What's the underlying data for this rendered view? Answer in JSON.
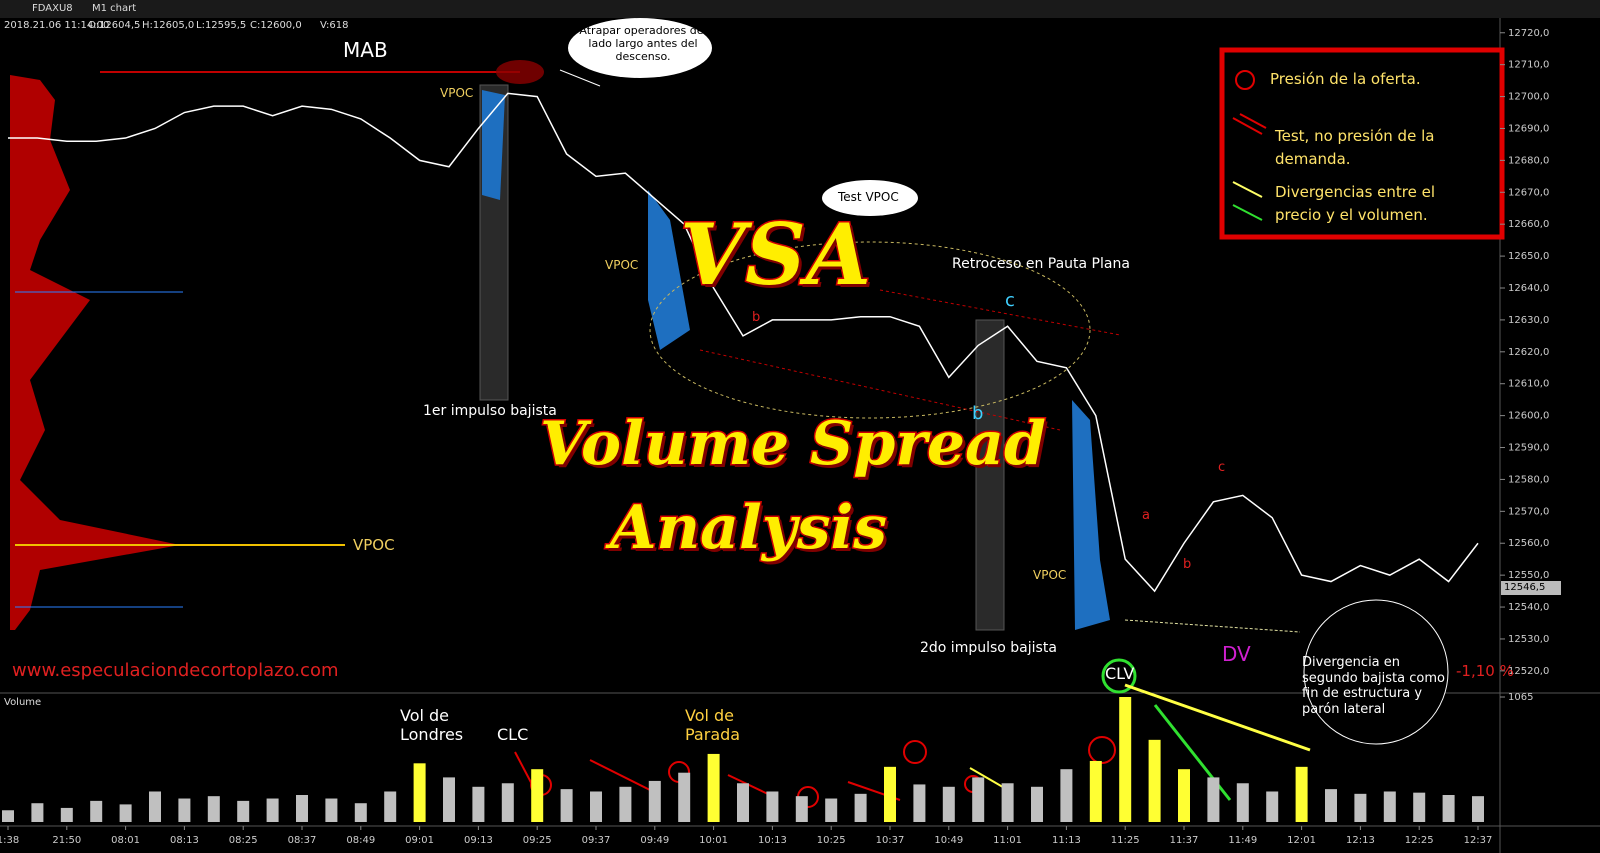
{
  "header": {
    "symbol": "FDAXU8",
    "timeframe": "M1 chart",
    "datetime": "2018.21.06 11:14:00",
    "open": "O:12604,5",
    "high": "H:12605,0",
    "low": "L:12595,5",
    "close": "C:12600,0",
    "volume": "V:618",
    "last_price": "12546,5",
    "panel_label": "Volume"
  },
  "chart_data": [
    {
      "type": "line",
      "color": "#ffffff",
      "values": [
        12687,
        12687,
        12686,
        12686,
        12687,
        12690,
        12695,
        12697,
        12697,
        12694,
        12697,
        12696,
        12693,
        12687,
        12680,
        12678,
        12690,
        12701,
        12700,
        12682,
        12675,
        12676,
        12668,
        12660,
        12640,
        12625,
        12630,
        12630,
        12630,
        12631,
        12631,
        12628,
        12612,
        12622,
        12628,
        12617,
        12615,
        12600,
        12555,
        12545,
        12560,
        12573,
        12575,
        12568,
        12550,
        12548,
        12553,
        12550,
        12555,
        12548,
        12560
      ],
      "ylim": [
        12514,
        12724
      ],
      "yticks": [
        {
          "value": 12520,
          "label": "12520,0"
        },
        {
          "value": 12530,
          "label": "12530,0"
        },
        {
          "value": 12540,
          "label": "12540,0"
        },
        {
          "value": 12550,
          "label": "12550,0"
        },
        {
          "value": 12560,
          "label": "12560,0"
        },
        {
          "value": 12570,
          "label": "12570,0"
        },
        {
          "value": 12580,
          "label": "12580,0"
        },
        {
          "value": 12590,
          "label": "12590,0"
        },
        {
          "value": 12600,
          "label": "12600,0"
        },
        {
          "value": 12610,
          "label": "12610,0"
        },
        {
          "value": 12620,
          "label": "12620,0"
        },
        {
          "value": 12630,
          "label": "12630,0"
        },
        {
          "value": 12640,
          "label": "12640,0"
        },
        {
          "value": 12650,
          "label": "12650,0"
        },
        {
          "value": 12660,
          "label": "12660,0"
        },
        {
          "value": 12670,
          "label": "12670,0"
        },
        {
          "value": 12680,
          "label": "12680,0"
        },
        {
          "value": 12690,
          "label": "12690,0"
        },
        {
          "value": 12700,
          "label": "12700,0"
        },
        {
          "value": 12710,
          "label": "12710,0"
        },
        {
          "value": 12720,
          "label": "12720,0"
        }
      ]
    },
    {
      "type": "bar",
      "categories": [
        "1:38",
        null,
        "21:50",
        null,
        "08:01",
        null,
        "08:13",
        null,
        "08:25",
        null,
        "08:37",
        null,
        "08:49",
        null,
        "09:01",
        null,
        "09:13",
        null,
        "09:25",
        null,
        "09:37",
        null,
        "09:49",
        null,
        "10:01",
        null,
        "10:13",
        null,
        "10:25",
        null,
        "10:37",
        null,
        "10:49",
        null,
        "11:01",
        null,
        "11:13",
        null,
        "11:25",
        null,
        "11:37",
        null,
        "11:49",
        null,
        "12:01",
        null,
        "12:13",
        null,
        "12:25",
        null,
        "12:37"
      ],
      "values": [
        100,
        160,
        120,
        180,
        150,
        260,
        200,
        220,
        180,
        200,
        230,
        200,
        160,
        260,
        500,
        380,
        300,
        330,
        450,
        280,
        260,
        300,
        350,
        420,
        580,
        330,
        260,
        220,
        200,
        240,
        470,
        320,
        300,
        380,
        330,
        300,
        450,
        520,
        1065,
        700,
        450,
        380,
        330,
        260,
        470,
        280,
        240,
        260,
        250,
        230,
        220
      ],
      "colors": [
        "#c0c0c0",
        "#c0c0c0",
        "#c0c0c0",
        "#c0c0c0",
        "#c0c0c0",
        "#c0c0c0",
        "#c0c0c0",
        "#c0c0c0",
        "#c0c0c0",
        "#c0c0c0",
        "#c0c0c0",
        "#c0c0c0",
        "#c0c0c0",
        "#c0c0c0",
        "#ffff33",
        "#c0c0c0",
        "#c0c0c0",
        "#c0c0c0",
        "#ffff33",
        "#c0c0c0",
        "#c0c0c0",
        "#c0c0c0",
        "#c0c0c0",
        "#c0c0c0",
        "#ffff33",
        "#c0c0c0",
        "#c0c0c0",
        "#c0c0c0",
        "#c0c0c0",
        "#c0c0c0",
        "#ffff33",
        "#c0c0c0",
        "#c0c0c0",
        "#c0c0c0",
        "#c0c0c0",
        "#c0c0c0",
        "#c0c0c0",
        "#ffff33",
        "#ffff33",
        "#ffff33",
        "#ffff33",
        "#c0c0c0",
        "#c0c0c0",
        "#c0c0c0",
        "#ffff33",
        "#c0c0c0",
        "#c0c0c0",
        "#c0c0c0",
        "#c0c0c0",
        "#c0c0c0",
        "#c0c0c0"
      ],
      "ylim": [
        0,
        1065
      ],
      "yticks": [
        1065
      ]
    }
  ],
  "annotations": [
    "MAB",
    "Atrapar operadores del lado largo antes del descenso.",
    "VPOC",
    "VPOC",
    "VPOC",
    "VPOC",
    "Test VPOC",
    "Retroceso en Pauta Plana",
    "c",
    "b",
    "1er impulso bajista",
    "2do impulso bajista",
    "VSA",
    "Volume Spread",
    "Analysis",
    "a",
    "b",
    "c",
    "b",
    "DV",
    "-1,10 %",
    "www.especulaciondecortoplazo.com",
    "Divergencia en segundo bajista como fin de estructura y parón lateral",
    "CLV",
    "Vol de Londres",
    "CLC",
    "Vol de Parada"
  ],
  "legend_box": [
    "Presión de la oferta.",
    "Test, no presión de la demanda.",
    "Divergencias entre el precio y el volumen."
  ]
}
